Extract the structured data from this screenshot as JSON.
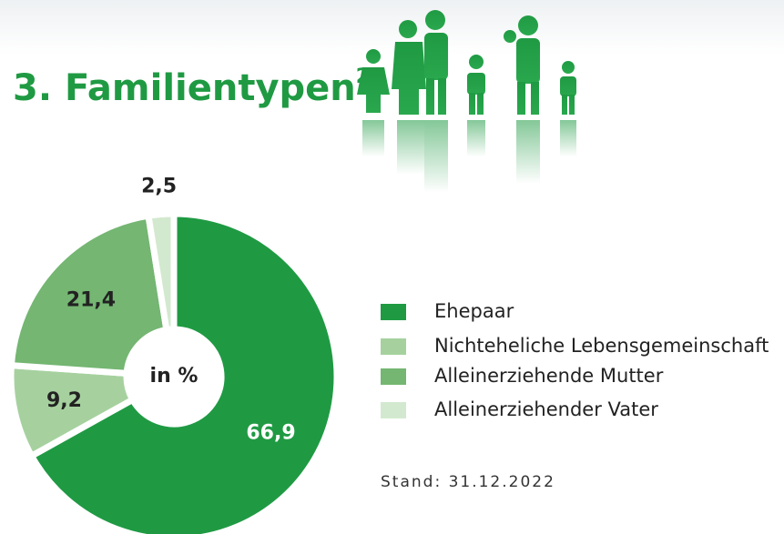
{
  "chart_data": {
    "type": "donut",
    "title": "3. Familientypen",
    "title_superscript": "2",
    "center_label": "in %",
    "note": "Stand: 31.12.2022",
    "categories": [
      "Ehepaar",
      "Nichteheliche Lebensgemeinschaft",
      "Alleinerziehende Mutter",
      "Alleinerziehender Vater"
    ],
    "values": [
      66.9,
      9.2,
      21.4,
      2.5
    ],
    "value_labels": [
      "66,9",
      "9,2",
      "21,4",
      "2,5"
    ],
    "colors": [
      "#1f9a43",
      "#a6d19f",
      "#74b672",
      "#d3e9cf"
    ],
    "label_colors": [
      "#ffffff",
      "#222222",
      "#222222",
      "#222222"
    ]
  }
}
